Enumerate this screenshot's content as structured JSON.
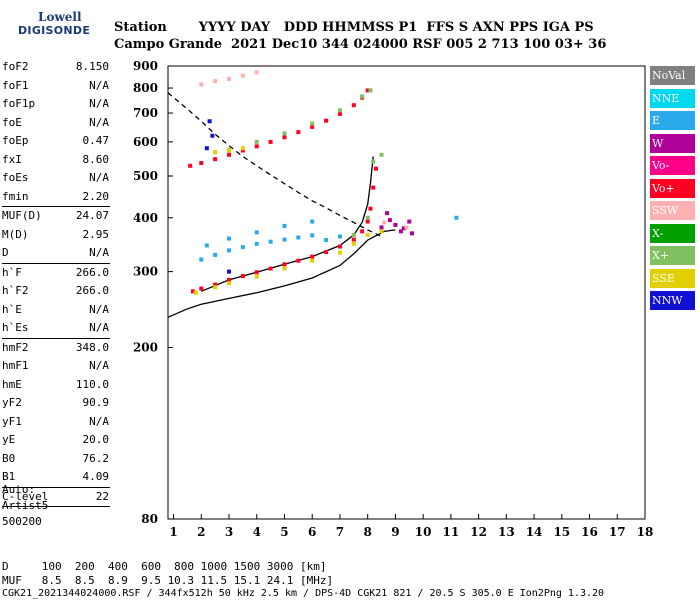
{
  "logo": {
    "line1": "Lowell",
    "line2": "DIGISONDE"
  },
  "header": {
    "row1": "Station       YYYY DAY   DDD HHMMSS P1  FFS S AXN PPS IGA PS",
    "row2": "Campo Grande  2021 Dec10 344 024000 RSF 005 2 713 100 03+ 36"
  },
  "params": [
    {
      "name": "foF2",
      "value": "8.150"
    },
    {
      "name": "foF1",
      "value": "N/A"
    },
    {
      "name": "foF1p",
      "value": "N/A"
    },
    {
      "name": "foE",
      "value": "N/A"
    },
    {
      "name": "foEp",
      "value": "0.47"
    },
    {
      "name": "fxI",
      "value": "8.60"
    },
    {
      "name": "foEs",
      "value": "N/A"
    },
    {
      "name": "fmin",
      "value": "2.20"
    },
    {
      "sep": true
    },
    {
      "name": "MUF(D)",
      "value": "24.07"
    },
    {
      "name": "M(D)",
      "value": "2.95"
    },
    {
      "name": "D",
      "value": "N/A"
    },
    {
      "sep": true
    },
    {
      "name": "h`F",
      "value": "266.0"
    },
    {
      "name": "h`F2",
      "value": "266.0"
    },
    {
      "name": "h`E",
      "value": "N/A"
    },
    {
      "name": "h`Es",
      "value": "N/A"
    },
    {
      "sep": true
    },
    {
      "name": "hmF2",
      "value": "348.0"
    },
    {
      "name": "hmF1",
      "value": "N/A"
    },
    {
      "name": "hmE",
      "value": "110.0"
    },
    {
      "name": "yF2",
      "value": "90.9"
    },
    {
      "name": "yF1",
      "value": "N/A"
    },
    {
      "name": "yE",
      "value": "20.0"
    },
    {
      "name": "B0",
      "value": "76.2"
    },
    {
      "name": "B1",
      "value": "4.09"
    },
    {
      "sep": true
    },
    {
      "name": "C-level",
      "value": "22"
    },
    {
      "sep": true
    }
  ],
  "auto": {
    "line1": "Auto:",
    "line2": "Artist5",
    "line3": "500200"
  },
  "footer": {
    "line1": "D     100  200  400  600  800 1000 1500 3000 [km]",
    "line2": "MUF   8.5  8.5  8.9  9.5 10.3 11.5 15.1 24.1 [MHz]",
    "line3": "CGK21_2021344024000.RSF / 344fx512h 50 kHz 2.5 km / DPS-4D CGK21 821 / 20.5 S 305.0 E Ion2Png 1.3.20"
  },
  "legend": [
    {
      "label": "NoVal",
      "color": "#808080"
    },
    {
      "label": "NNE",
      "color": "#00d8f0"
    },
    {
      "label": "E",
      "color": "#2aa8ec"
    },
    {
      "label": "W",
      "color": "#b0009a"
    },
    {
      "label": "Vo-",
      "color": "#ff0088"
    },
    {
      "label": "Vo+",
      "color": "#ff0022"
    },
    {
      "label": "SSW",
      "color": "#ffb0b0"
    },
    {
      "label": "X-",
      "color": "#00a000"
    },
    {
      "label": "X+",
      "color": "#80c060"
    },
    {
      "label": "SSE",
      "color": "#e0d000"
    },
    {
      "label": "NNW",
      "color": "#1010d0"
    }
  ],
  "chart_data": {
    "type": "scatter",
    "xlim": [
      0.8,
      18
    ],
    "ylim": [
      80,
      900
    ],
    "y_log_scale": true,
    "x_ticks": [
      1,
      2,
      3,
      4,
      5,
      6,
      7,
      8,
      9,
      10,
      11,
      12,
      13,
      14,
      15,
      16,
      17,
      18
    ],
    "y_ticks": [
      80,
      200,
      300,
      400,
      500,
      600,
      700,
      800,
      900
    ],
    "y_tick_labels": [
      "80",
      "200",
      "300",
      "400",
      "500",
      "600",
      "700",
      "800",
      "900"
    ],
    "grid": false,
    "series": [
      {
        "name": "Vo+",
        "color": "#ff0022",
        "points": [
          [
            1.7,
            270
          ],
          [
            2,
            274
          ],
          [
            2.5,
            280
          ],
          [
            3,
            287
          ],
          [
            3.5,
            293
          ],
          [
            4,
            299
          ],
          [
            4.5,
            305
          ],
          [
            5,
            312
          ],
          [
            5.5,
            318
          ],
          [
            6,
            325
          ],
          [
            6.5,
            333
          ],
          [
            7,
            343
          ],
          [
            7.5,
            356
          ],
          [
            7.8,
            372
          ],
          [
            8,
            392
          ],
          [
            8.1,
            420
          ],
          [
            8.2,
            470
          ],
          [
            8.3,
            520
          ],
          [
            1.6,
            528
          ],
          [
            2,
            536
          ],
          [
            2.5,
            547
          ],
          [
            3,
            560
          ],
          [
            3.5,
            573
          ],
          [
            4,
            586
          ],
          [
            4.5,
            600
          ],
          [
            5,
            615
          ],
          [
            5.5,
            632
          ],
          [
            6,
            650
          ],
          [
            6.5,
            672
          ],
          [
            7,
            697
          ],
          [
            7.5,
            730
          ],
          [
            7.8,
            760
          ],
          [
            8,
            790
          ]
        ]
      },
      {
        "name": "X+",
        "color": "#80c060",
        "points": [
          [
            3,
            575
          ],
          [
            4,
            600
          ],
          [
            5,
            628
          ],
          [
            6,
            662
          ],
          [
            7,
            710
          ],
          [
            7.8,
            765
          ],
          [
            8.1,
            790
          ],
          [
            8.2,
            540
          ],
          [
            8.5,
            560
          ],
          [
            7.5,
            365
          ],
          [
            8,
            400
          ]
        ]
      },
      {
        "name": "W",
        "color": "#b0009a",
        "points": [
          [
            8.5,
            380
          ],
          [
            8.8,
            395
          ],
          [
            9,
            385
          ],
          [
            9.3,
            378
          ],
          [
            9.5,
            392
          ],
          [
            8.7,
            410
          ],
          [
            9.2,
            372
          ],
          [
            9.6,
            368
          ]
        ]
      },
      {
        "name": "E",
        "color": "#2aa8ec",
        "points": [
          [
            2,
            320
          ],
          [
            2.5,
            328
          ],
          [
            3,
            336
          ],
          [
            3.5,
            342
          ],
          [
            4,
            348
          ],
          [
            4.5,
            352
          ],
          [
            5,
            356
          ],
          [
            5.5,
            360
          ],
          [
            6,
            364
          ],
          [
            2.2,
            345
          ],
          [
            3,
            358
          ],
          [
            4,
            370
          ],
          [
            5,
            383
          ],
          [
            6,
            392
          ],
          [
            6.5,
            355
          ],
          [
            7,
            362
          ],
          [
            11.2,
            400
          ]
        ]
      },
      {
        "name": "SSE",
        "color": "#e0d000",
        "points": [
          [
            1.8,
            268
          ],
          [
            2.5,
            276
          ],
          [
            3,
            282
          ],
          [
            4,
            292
          ],
          [
            5,
            305
          ],
          [
            6,
            318
          ],
          [
            7,
            332
          ],
          [
            7.5,
            348
          ],
          [
            2.5,
            568
          ],
          [
            3,
            573
          ],
          [
            3.5,
            580
          ],
          [
            8,
            365
          ],
          [
            8.5,
            372
          ]
        ]
      },
      {
        "name": "NNW",
        "color": "#1010d0",
        "points": [
          [
            2.3,
            670
          ],
          [
            2.4,
            620
          ],
          [
            2.2,
            580
          ],
          [
            3,
            300
          ]
        ]
      },
      {
        "name": "SSW",
        "color": "#ffb0b0",
        "points": [
          [
            2,
            815
          ],
          [
            2.5,
            830
          ],
          [
            3,
            840
          ],
          [
            3.5,
            855
          ],
          [
            4,
            870
          ],
          [
            8.6,
            390
          ],
          [
            9.4,
            380
          ]
        ]
      }
    ],
    "lines": [
      {
        "color": "#000000",
        "dash": "none",
        "points": [
          [
            0.8,
            235
          ],
          [
            1.5,
            246
          ],
          [
            2,
            252
          ],
          [
            3,
            260
          ],
          [
            4,
            268
          ],
          [
            5,
            278
          ],
          [
            6,
            290
          ],
          [
            7,
            310
          ],
          [
            7.5,
            330
          ],
          [
            8,
            355
          ],
          [
            8.6,
            372
          ],
          [
            9,
            375
          ]
        ]
      },
      {
        "color": "#000000",
        "dash": "none",
        "points": [
          [
            2,
            270
          ],
          [
            3,
            287
          ],
          [
            4,
            299
          ],
          [
            5,
            312
          ],
          [
            6,
            325
          ],
          [
            7,
            345
          ],
          [
            7.5,
            365
          ],
          [
            7.8,
            390
          ],
          [
            8,
            430
          ],
          [
            8.1,
            480
          ],
          [
            8.2,
            555
          ]
        ]
      },
      {
        "color": "#000000",
        "dash": "5,4",
        "points": [
          [
            0.8,
            780
          ],
          [
            1.5,
            715
          ],
          [
            2,
            670
          ],
          [
            2.5,
            625
          ],
          [
            3,
            588
          ],
          [
            3.5,
            555
          ],
          [
            4,
            528
          ],
          [
            4.5,
            503
          ],
          [
            5,
            480
          ],
          [
            5.5,
            458
          ],
          [
            6,
            438
          ],
          [
            6.5,
            422
          ],
          [
            7,
            405
          ],
          [
            7.5,
            390
          ],
          [
            8,
            375
          ],
          [
            8.5,
            362
          ]
        ]
      }
    ]
  }
}
